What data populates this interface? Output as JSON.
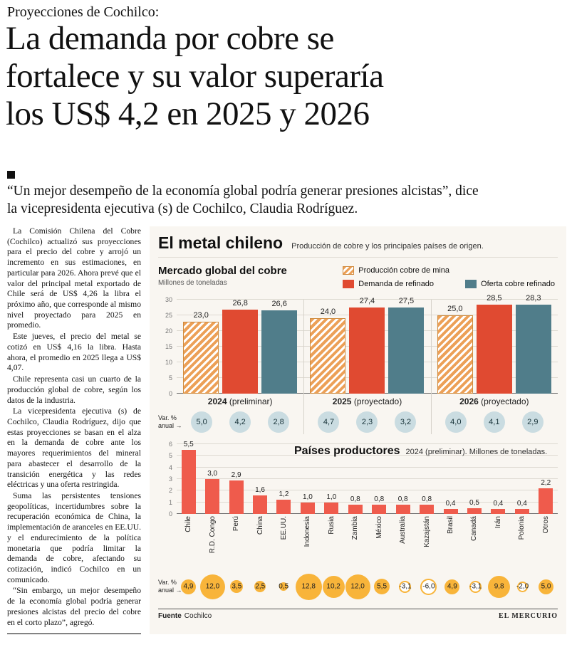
{
  "article": {
    "kicker": "Proyecciones de Cochilco:",
    "headline_lines": [
      "La demanda por cobre se",
      "fortalece y su valor superaría",
      "los US$ 4,2 en 2025 y 2026"
    ],
    "deck_lines": [
      "“Un mejor desempeño de la economía global podría generar presiones alcistas”, dice",
      "la vicepresidenta ejecutiva (s) de Cochilco, Claudia Rodríguez."
    ],
    "paragraphs": [
      "La Comisión Chilena del Cobre (Cochilco) actualizó sus proyecciones para el precio del cobre y arrojó un incremento en sus estimaciones, en particular para 2026. Ahora prevé que el valor del principal metal exportado de Chile será de US$ 4,26 la libra el próximo año, que corresponde al mismo nivel proyectado para 2025 en promedio.",
      "Este jueves, el precio del metal se cotizó en US$ 4,16 la libra. Hasta ahora, el promedio en 2025 llega a US$ 4,07.",
      "Chile representa casi un cuarto de la producción global de cobre, según los datos de la industria.",
      "La vicepresidenta ejecutiva (s) de Cochilco, Claudia Rodríguez, dijo que estas proyecciones se basan en el alza en la demanda de cobre ante los mayores requerimientos del mineral para abastecer el desarrollo de la transición energética y las redes eléctricas y una oferta restringida.",
      "Suma las persistentes tensiones geopolíticas, incertidumbres sobre la recuperación económica de China, la implementación de aranceles en EE.UU. y el endurecimiento de la política monetaria que podría limitar la demanda de cobre, afectando su cotización, indicó Cochilco en un comunicado.",
      "“Sin embargo, un mejor desempeño de la economía global podría generar presiones alcistas del precio del cobre en el corto plazo”, agregó."
    ]
  },
  "infographic": {
    "title": "El metal chileno",
    "subtitle": "Producción de cobre y los principales países de origen.",
    "var_label_line1": "Var. %",
    "var_label_line2": "anual",
    "arrow": "→",
    "fuente_label": "Fuente",
    "fuente_name": "Cochilco",
    "brand": "EL MERCURIO"
  },
  "colors": {
    "mine_production_hatch": "#ECA057",
    "refined_demand_red": "#E04A31",
    "refined_supply_teal": "#507D8A",
    "producer_bar_coral": "#EF5B4C",
    "var_circle_blue": "#CADCE1",
    "var_circle_yellow": "#F8B43A",
    "panel_background": "#F9F6F1"
  },
  "chart_data": [
    {
      "type": "bar",
      "title": "Mercado global del cobre",
      "units_label": "Millones de toneladas",
      "ylim": [
        0,
        30
      ],
      "yticks": [
        0,
        5,
        10,
        15,
        20,
        25,
        30
      ],
      "grid": true,
      "legend_position": "top-right",
      "groups": [
        {
          "year": "2024",
          "note": "(preliminar)"
        },
        {
          "year": "2025",
          "note": "(proyectado)"
        },
        {
          "year": "2026",
          "note": "(proyectado)"
        }
      ],
      "series": [
        {
          "name": "Producción cobre de mina",
          "style": "hatched-orange",
          "values": [
            23.0,
            24.0,
            25.0
          ],
          "labels": [
            "23,0",
            "24,0",
            "25,0"
          ]
        },
        {
          "name": "Demanda de refinado",
          "style": "solid-red",
          "values": [
            26.8,
            27.4,
            28.5
          ],
          "labels": [
            "26,8",
            "27,4",
            "28,5"
          ]
        },
        {
          "name": "Oferta cobre refinado",
          "style": "solid-teal",
          "values": [
            26.6,
            27.5,
            28.3
          ],
          "labels": [
            "26,6",
            "27,5",
            "28,3"
          ]
        }
      ],
      "var_pct_anual": {
        "values": [
          [
            5.0,
            4.2,
            2.8
          ],
          [
            4.7,
            2.3,
            3.2
          ],
          [
            4.0,
            4.1,
            2.9
          ]
        ],
        "labels": [
          [
            "5,0",
            "4,2",
            "2,8"
          ],
          [
            "4,7",
            "2,3",
            "3,2"
          ],
          [
            "4,0",
            "4,1",
            "2,9"
          ]
        ]
      }
    },
    {
      "type": "bar",
      "title": "Países productores",
      "note": "2024 (preliminar). Millones de toneladas.",
      "ylim": [
        0,
        6
      ],
      "yticks": [
        0,
        1,
        2,
        3,
        4,
        5,
        6
      ],
      "grid": true,
      "categories": [
        "Chile",
        "R.D. Congo",
        "Perú",
        "China",
        "EE.UU.",
        "Indonesia",
        "Rusia",
        "Zambia",
        "México",
        "Australia",
        "Kazajstán",
        "Brasil",
        "Canadá",
        "Irán",
        "Polonia",
        "Otros"
      ],
      "values": [
        5.5,
        3.0,
        2.9,
        1.6,
        1.2,
        1.0,
        1.0,
        0.8,
        0.8,
        0.8,
        0.8,
        0.4,
        0.5,
        0.4,
        0.4,
        2.2
      ],
      "value_labels": [
        "5,5",
        "3,0",
        "2,9",
        "1,6",
        "1,2",
        "1,0",
        "1,0",
        "0,8",
        "0,8",
        "0,8",
        "0,8",
        "0,4",
        "0,5",
        "0,4",
        "0,4",
        "2,2"
      ],
      "var_pct_anual": {
        "values": [
          4.9,
          12.0,
          3.5,
          2.5,
          0.5,
          12.8,
          10.2,
          12.0,
          5.5,
          -3.1,
          -6.0,
          4.9,
          -3.1,
          9.8,
          -2.0,
          5.0
        ],
        "labels": [
          "4,9",
          "12,0",
          "3,5",
          "2,5",
          "0,5",
          "12,8",
          "10,2",
          "12,0",
          "5,5",
          "-3,1",
          "-6,0",
          "4,9",
          "-3,1",
          "9,8",
          "-2,0",
          "5,0"
        ]
      }
    }
  ]
}
